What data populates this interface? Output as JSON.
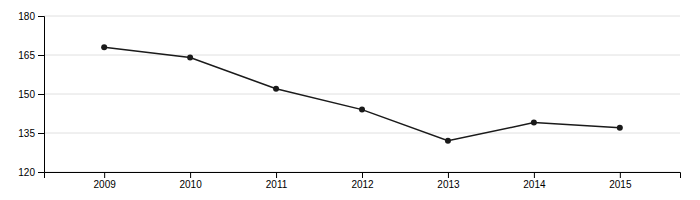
{
  "chart_data": {
    "type": "line",
    "x": [
      2009,
      2010,
      2011,
      2012,
      2013,
      2014,
      2015
    ],
    "values": [
      168,
      164,
      152,
      144,
      132,
      139,
      137
    ],
    "color": "#1a1a1a",
    "marker": "circle",
    "xlim": [
      2008.3,
      2015.7
    ],
    "xticks": [
      2009,
      2010,
      2011,
      2012,
      2013,
      2014,
      2015
    ],
    "ylim": [
      120,
      180
    ],
    "yticks": [
      120,
      135,
      150,
      165,
      180
    ],
    "grid": "y"
  }
}
